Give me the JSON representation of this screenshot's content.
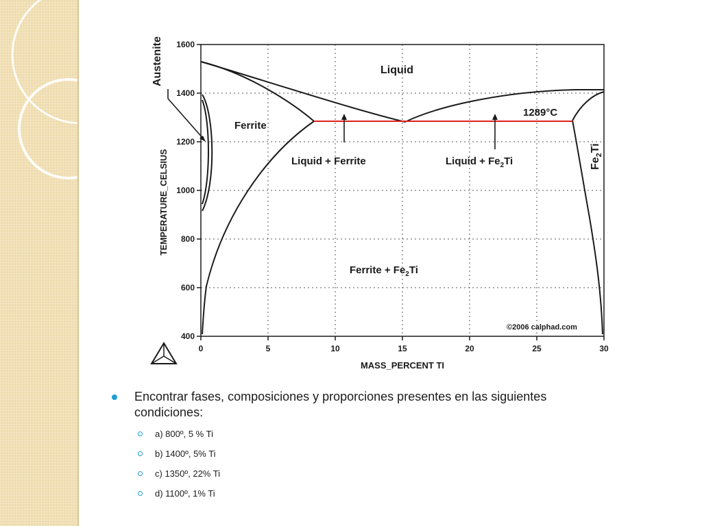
{
  "diagram": {
    "y_axis_label": "TEMPERATURE_CELSIUS",
    "x_axis_label": "MASS_PERCENT TI",
    "y_ticks": [
      "1600",
      "1400",
      "1200",
      "1000",
      "800",
      "600",
      "400"
    ],
    "x_ticks": [
      "0",
      "5",
      "10",
      "15",
      "20",
      "25",
      "30"
    ],
    "x_range": [
      0,
      30
    ],
    "y_range": [
      400,
      1600
    ],
    "grid": "dotted",
    "regions": {
      "austenite": "Austenite",
      "liquid": "Liquid",
      "ferrite": "Ferrite",
      "liquid_ferrite": "Liquid + Ferrite",
      "liquid_fe2ti_prefix": "Liquid + Fe",
      "ferrite_fe2ti_prefix": "Ferrite + Fe",
      "fe2ti_prefix": "Fe",
      "sub_2": "2",
      "ti": "Ti"
    },
    "eutectic_label": "1289°C",
    "eutectic_temp_c": 1289,
    "copyright": "©2006 calphad.com",
    "colors": {
      "eutectic_line": "#e0201b",
      "curves": "#1a1a1a",
      "grid": "#555555"
    }
  },
  "question": {
    "text": "Encontrar fases, composiciones y proporciones presentes en las siguientes condiciones:",
    "items": [
      "a) 800º,  5 % Ti",
      "b) 1400º,  5% Ti",
      "c) 1350º,  22% Ti",
      "d) 1100º, 1% Ti"
    ]
  },
  "theme": {
    "bullet_color": "#1f9ed6",
    "side_panel_color": "#efdcae"
  }
}
